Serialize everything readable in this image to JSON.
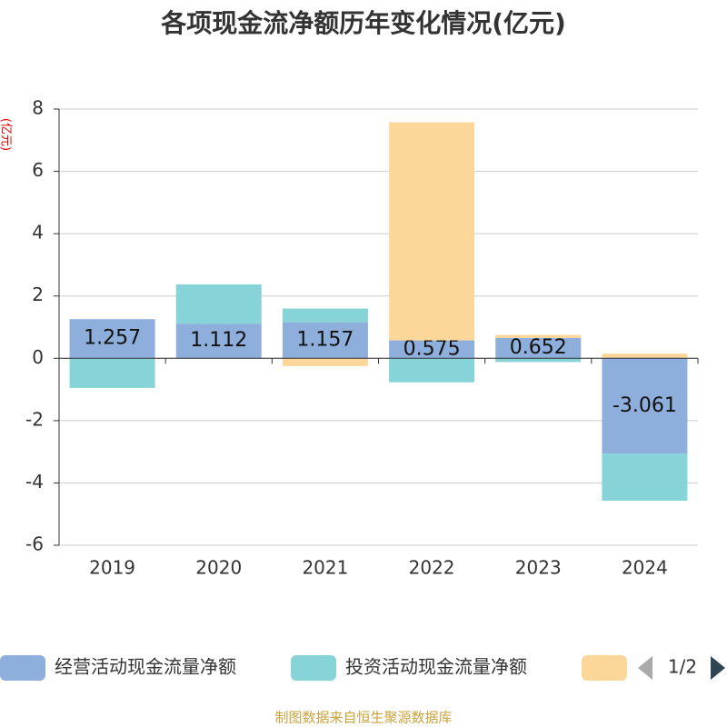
{
  "chart_data": {
    "type": "bar",
    "stacked": true,
    "title": "各项现金流净额历年变化情况(亿元)",
    "y_label": "(亿元)",
    "categories": [
      "2019",
      "2020",
      "2021",
      "2022",
      "2023",
      "2024"
    ],
    "series": [
      {
        "name": "经营活动现金流量净额",
        "color": "#8eaedc",
        "values": [
          1.257,
          1.112,
          1.157,
          0.575,
          0.652,
          -3.061
        ],
        "show_labels": true
      },
      {
        "name": "投资活动现金流量净额",
        "color": "#86d4d8",
        "values": [
          -0.95,
          1.26,
          0.44,
          -0.77,
          -0.12,
          -1.51
        ]
      },
      {
        "name": null,
        "color": "#fdd699",
        "values": [
          0,
          0,
          -0.25,
          7.0,
          0.1,
          0.15
        ]
      }
    ],
    "ylim": [
      -6,
      8
    ],
    "yticks": [
      -6,
      -4,
      -2,
      0,
      2,
      4,
      6,
      8
    ],
    "grid": true,
    "legend_page": "1/2",
    "source": "制图数据来自恒生聚源数据库"
  }
}
